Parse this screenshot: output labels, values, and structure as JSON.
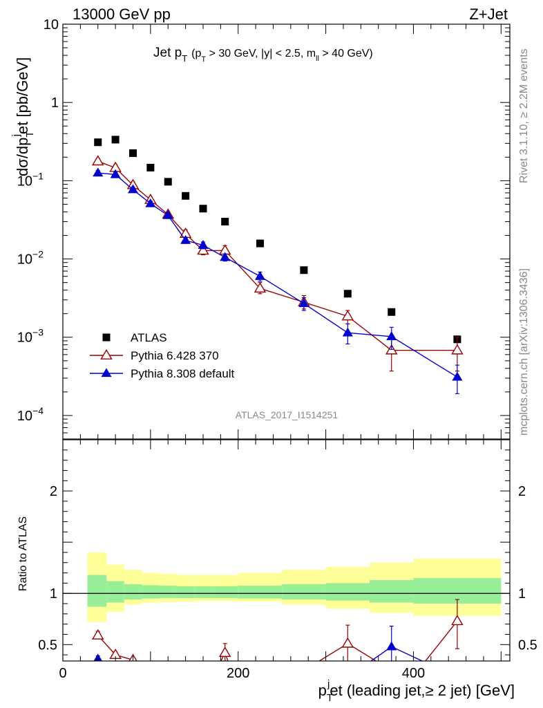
{
  "header": {
    "left": "13000 GeV pp",
    "right": "Z+Jet"
  },
  "chart_data": [
    {
      "type": "scatter",
      "title_main": "Jet p",
      "title_main_sub": "T",
      "title_detail": "(p",
      "title_detail_sub": "T",
      "title_detail_2": " > 30 GeV, |y| < 2.5, m",
      "title_detail_sub2": "ll",
      "title_detail_3": " > 40 GeV)",
      "ylabel": "dσ/dp",
      "ylabel_sub": "T",
      "ylabel_sup": "j",
      "ylabel_2": "et [pb/GeV]",
      "yscale": "log",
      "ylim": [
        5e-05,
        10
      ],
      "xlim": [
        0,
        510
      ],
      "y_ticks": [
        {
          "value": 10,
          "label": "10",
          "exp": ""
        },
        {
          "value": 1,
          "label": "1",
          "exp": ""
        },
        {
          "value": 0.1,
          "label": "10",
          "exp": "−1"
        },
        {
          "value": 0.01,
          "label": "10",
          "exp": "−2"
        },
        {
          "value": 0.001,
          "label": "10",
          "exp": "−3"
        },
        {
          "value": 0.0001,
          "label": "10",
          "exp": "−4"
        }
      ],
      "watermark": "ATLAS_2017_I1514251",
      "legend_position": "lower-left",
      "series": [
        {
          "name": "ATLAS",
          "color": "#000000",
          "marker": "square",
          "x": [
            40,
            60,
            80,
            100,
            120,
            140,
            160,
            185,
            225,
            275,
            325,
            375,
            450
          ],
          "y": [
            0.31,
            0.335,
            0.225,
            0.147,
            0.097,
            0.064,
            0.044,
            0.03,
            0.0158,
            0.0072,
            0.0036,
            0.0021,
            0.00094
          ]
        },
        {
          "name": "Pythia 6.428 370",
          "color": "#990000",
          "marker": "open-triangle",
          "x": [
            40,
            60,
            80,
            100,
            120,
            140,
            160,
            185,
            225,
            275,
            325,
            375,
            450
          ],
          "y": [
            0.177,
            0.146,
            0.088,
            0.057,
            0.037,
            0.021,
            0.0128,
            0.0128,
            0.0042,
            0.0028,
            0.00185,
            0.00068,
            0.00068
          ],
          "err_low": [
            0.163,
            0.132,
            0.08,
            0.052,
            0.034,
            0.0185,
            0.0113,
            0.011,
            0.0036,
            0.0023,
            0.00148,
            0.00037,
            0.00037
          ],
          "err_high": [
            0.192,
            0.16,
            0.097,
            0.062,
            0.04,
            0.0235,
            0.0143,
            0.0148,
            0.005,
            0.0034,
            0.0022,
            0.001,
            0.001
          ]
        },
        {
          "name": "Pythia 8.308 default",
          "color": "#0000cc",
          "marker": "filled-triangle",
          "x": [
            40,
            60,
            80,
            100,
            120,
            140,
            160,
            185,
            225,
            275,
            325,
            375,
            450
          ],
          "y": [
            0.126,
            0.12,
            0.077,
            0.051,
            0.036,
            0.0173,
            0.015,
            0.0105,
            0.006,
            0.0027,
            0.00114,
            0.00102,
            0.00031
          ],
          "err_low": [
            0.117,
            0.111,
            0.071,
            0.047,
            0.033,
            0.0158,
            0.0135,
            0.0094,
            0.0052,
            0.0022,
            0.00082,
            0.0007,
            0.00019
          ],
          "err_high": [
            0.135,
            0.129,
            0.083,
            0.055,
            0.039,
            0.0188,
            0.0165,
            0.0116,
            0.0068,
            0.0032,
            0.00148,
            0.00134,
            0.00044
          ]
        }
      ]
    },
    {
      "type": "scatter",
      "ylabel": "Ratio to ATLAS",
      "xlabel": "p",
      "xlabel_sub": "T",
      "xlabel_sup": "j",
      "xlabel_2": "et (leading jet,≥ 2 jet) [GeV]",
      "xlim": [
        0,
        510
      ],
      "ylim": [
        0.34,
        2.5
      ],
      "x_ticks": [
        0,
        200,
        400
      ],
      "y_ticks": [
        {
          "value": 0.5,
          "label": "0.5"
        },
        {
          "value": 1,
          "label": "1"
        },
        {
          "value": 2,
          "label": "2"
        }
      ],
      "bands": {
        "bins": [
          [
            28,
            50
          ],
          [
            50,
            70
          ],
          [
            70,
            90
          ],
          [
            90,
            110
          ],
          [
            110,
            130
          ],
          [
            130,
            150
          ],
          [
            150,
            170
          ],
          [
            170,
            200
          ],
          [
            200,
            250
          ],
          [
            250,
            300
          ],
          [
            300,
            350
          ],
          [
            350,
            400
          ],
          [
            400,
            500
          ]
        ],
        "stat_low": [
          0.87,
          0.91,
          0.94,
          0.95,
          0.955,
          0.955,
          0.955,
          0.955,
          0.95,
          0.94,
          0.93,
          0.91,
          0.9
        ],
        "stat_high": [
          1.18,
          1.12,
          1.09,
          1.08,
          1.075,
          1.07,
          1.07,
          1.07,
          1.075,
          1.09,
          1.1,
          1.13,
          1.15
        ],
        "syst_low": [
          0.72,
          0.82,
          0.89,
          0.91,
          0.915,
          0.92,
          0.925,
          0.925,
          0.92,
          0.89,
          0.85,
          0.81,
          0.78
        ],
        "syst_high": [
          1.4,
          1.28,
          1.23,
          1.2,
          1.19,
          1.18,
          1.18,
          1.18,
          1.2,
          1.23,
          1.26,
          1.3,
          1.34
        ],
        "stat_color": "#99ee99",
        "syst_color": "#ffff99"
      },
      "series": [
        {
          "name": "Pythia 6.428 370",
          "color": "#990000",
          "marker": "open-triangle",
          "x": [
            40,
            60,
            80,
            185,
            325,
            450
          ],
          "y": [
            0.59,
            0.4,
            0.35,
            0.42,
            0.51,
            0.73
          ],
          "err_low": [
            0.56,
            0.37,
            0.33,
            0.34,
            0.33,
            0.46
          ],
          "err_high": [
            0.63,
            0.43,
            0.37,
            0.51,
            0.69,
            0.94
          ],
          "segments": [
            [
              [
                40,
                0.59
              ],
              [
                60,
                0.4
              ],
              [
                80,
                0.35
              ],
              [
                90,
                0.3
              ]
            ],
            [
              [
                178,
                0.3
              ],
              [
                185,
                0.42
              ],
              [
                190,
                0.3
              ]
            ],
            [
              [
                285,
                0.3
              ],
              [
                325,
                0.51
              ],
              [
                365,
                0.3
              ]
            ],
            [
              [
                410,
                0.3
              ],
              [
                450,
                0.73
              ]
            ]
          ]
        },
        {
          "name": "Pythia 8.308 default",
          "color": "#0000cc",
          "marker": "filled-triangle",
          "x": [
            40,
            375
          ],
          "y": [
            0.36,
            0.48
          ],
          "err_low": [
            0.34,
            0.3
          ],
          "err_high": [
            0.39,
            0.68
          ],
          "segments": [
            [
              [
                35,
                0.3
              ],
              [
                40,
                0.36
              ],
              [
                45,
                0.3
              ]
            ],
            [
              [
                345,
                0.3
              ],
              [
                375,
                0.48
              ],
              [
                420,
                0.3
              ]
            ]
          ]
        }
      ]
    }
  ],
  "side_labels": {
    "rivet": "Rivet 3.1.10, ≥ 2.2M events",
    "mcplots": "mcplots.cern.ch [arXiv:1306.3436]"
  }
}
